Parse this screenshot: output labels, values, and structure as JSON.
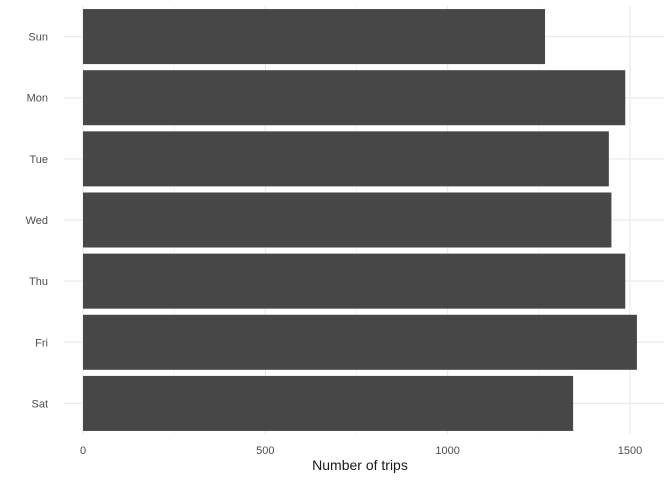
{
  "chart_data": {
    "type": "bar",
    "orientation": "horizontal",
    "categories": [
      "Sun",
      "Mon",
      "Tue",
      "Wed",
      "Thu",
      "Fri",
      "Sat"
    ],
    "values": [
      1267,
      1487,
      1442,
      1449,
      1487,
      1519,
      1344
    ],
    "title": "",
    "xlabel": "Number of trips",
    "ylabel": "",
    "xlim": [
      0,
      1590
    ],
    "x_ticks": [
      0,
      500,
      1000,
      1500
    ],
    "x_tick_labels": [
      "0",
      "500",
      "1000",
      "1500"
    ],
    "grid": true,
    "legend": "none",
    "bar_color": "#474747",
    "grid_color": "#ebebeb"
  }
}
